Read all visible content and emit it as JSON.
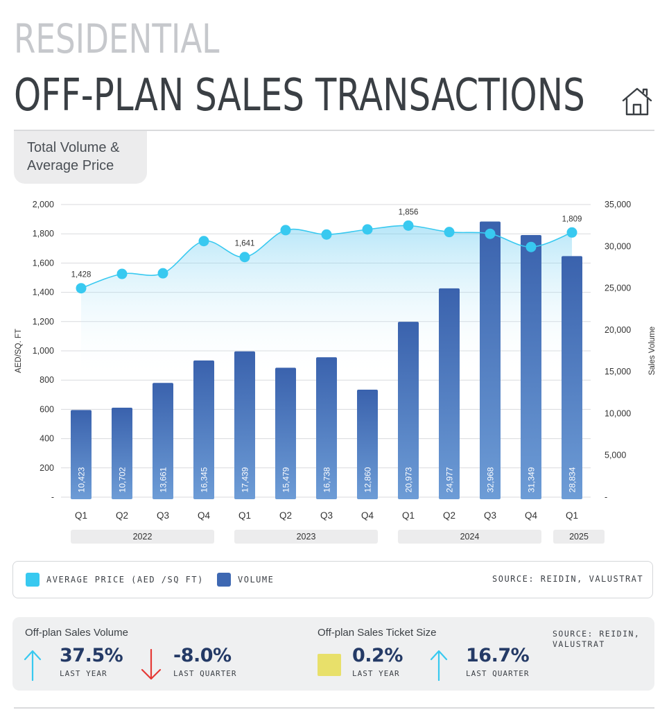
{
  "header": {
    "title_line1": "RESIDENTIAL",
    "title_line2": "OFF-PLAN SALES TRANSACTIONS",
    "icon": "home-icon"
  },
  "section": {
    "subtitle_line1": "Total Volume &",
    "subtitle_line2": "Average Price"
  },
  "colors": {
    "price": "#38c9f0",
    "volume": "#3a66b0",
    "volume_light": "#6f9ed6",
    "down": "#e53935",
    "flat": "#e8e06a"
  },
  "chart_data": {
    "type": "bar",
    "title": "",
    "categories": [
      "Q1",
      "Q2",
      "Q3",
      "Q4",
      "Q1",
      "Q2",
      "Q3",
      "Q4",
      "Q1",
      "Q2",
      "Q3",
      "Q4",
      "Q1"
    ],
    "year_groups": [
      {
        "label": "2022",
        "count": 4
      },
      {
        "label": "2023",
        "count": 4
      },
      {
        "label": "2024",
        "count": 4
      },
      {
        "label": "2025",
        "count": 1
      }
    ],
    "series": [
      {
        "name": "VOLUME",
        "type": "bar",
        "axis": "right",
        "values": [
          10423,
          10702,
          13661,
          16345,
          17439,
          15479,
          16738,
          12860,
          20973,
          24977,
          32968,
          31349,
          28834
        ],
        "labels": [
          "10,423",
          "10,702",
          "13,661",
          "16,345",
          "17,439",
          "15,479",
          "16,738",
          "12,860",
          "20,973",
          "24,977",
          "32,968",
          "31,349",
          "28,834"
        ]
      },
      {
        "name": "AVERAGE PRICE (AED /SQ FT)",
        "type": "line",
        "axis": "left",
        "values": [
          1428,
          1526,
          1530,
          1750,
          1641,
          1825,
          1795,
          1830,
          1856,
          1812,
          1800,
          1710,
          1809
        ],
        "labels": [
          "1,428",
          "",
          "",
          "",
          "1,641",
          "",
          "",
          "",
          "1,856",
          "",
          "",
          "",
          "1,809"
        ]
      }
    ],
    "ylabel": "AED/SQ. FT",
    "ylabel_right": "Sales Volume",
    "ylim": [
      0,
      2000
    ],
    "ylim_right": [
      0,
      35000
    ],
    "yticks": [
      "2,000",
      "1,800",
      "1,600",
      "1,400",
      "1,200",
      "1,000",
      "800",
      "600",
      "400",
      "200",
      "-"
    ],
    "yticks_right": [
      "35,000",
      "30,000",
      "25,000",
      "20,000",
      "15,000",
      "10,000",
      "5,000",
      "-"
    ],
    "grid": true,
    "legend_position": "bottom"
  },
  "legend": {
    "price_label": "AVERAGE PRICE (AED /SQ FT)",
    "volume_label": "VOLUME",
    "source": "SOURCE: REIDIN, VALUSTRAT"
  },
  "kpis": {
    "volume_heading": "Off-plan Sales Volume",
    "ticket_heading": "Off-plan Sales Ticket Size",
    "source_line1": "SOURCE: REIDIN,",
    "source_line2": "VALUSTRAT",
    "items": [
      {
        "value": "37.5%",
        "label": "LAST YEAR",
        "direction": "up"
      },
      {
        "value": "-8.0%",
        "label": "LAST QUARTER",
        "direction": "down"
      },
      {
        "value": "0.2%",
        "label": "LAST YEAR",
        "direction": "flat"
      },
      {
        "value": "16.7%",
        "label": "LAST QUARTER",
        "direction": "up"
      }
    ]
  }
}
